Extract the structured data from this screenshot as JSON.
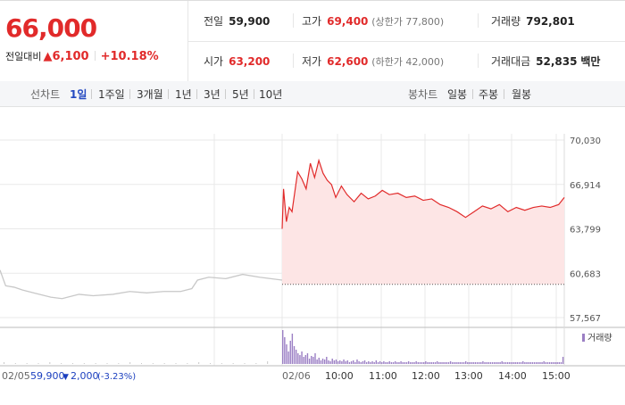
{
  "summary": {
    "current_price": "66,000",
    "change_label": "전일대비",
    "change_icon": "up-triangle-icon",
    "change_value": "6,100",
    "change_percent": "+10.18%",
    "prev_close_label": "전일",
    "prev_close": "59,900",
    "high_label": "고가",
    "high": "69,400",
    "high_limit": "(상한가 77,800)",
    "volume_label": "거래량",
    "volume": "792,801",
    "open_label": "시가",
    "open": "63,200",
    "low_label": "저가",
    "low": "62,600",
    "low_limit": "(하한가 42,000)",
    "trade_value_label": "거래대금",
    "trade_value": "52,835",
    "trade_value_unit": "백만"
  },
  "period_bar": {
    "line_chart_label": "선차트",
    "periods": [
      "1일",
      "1주일",
      "3개월",
      "1년",
      "3년",
      "5년",
      "10년"
    ],
    "active_period": "1일",
    "candle_label": "봉차트",
    "candle_periods": [
      "일봉",
      "주봉",
      "월봉"
    ]
  },
  "chart_data": {
    "type": "line",
    "y_ticks": [
      "70,030",
      "66,914",
      "63,799",
      "60,683",
      "57,567"
    ],
    "ylim": [
      57567,
      70030
    ],
    "prev_close": 59900,
    "x_tick_labels": [
      "02/05",
      "02/06",
      "10:00",
      "11:00",
      "12:00",
      "13:00",
      "14:00",
      "15:00"
    ],
    "prev_day_series": [
      {
        "t": 0.0,
        "v": 60900
      },
      {
        "t": 0.02,
        "v": 59800
      },
      {
        "t": 0.05,
        "v": 59700
      },
      {
        "t": 0.08,
        "v": 59500
      },
      {
        "t": 0.12,
        "v": 59300
      },
      {
        "t": 0.18,
        "v": 59000
      },
      {
        "t": 0.22,
        "v": 58900
      },
      {
        "t": 0.28,
        "v": 59200
      },
      {
        "t": 0.33,
        "v": 59100
      },
      {
        "t": 0.4,
        "v": 59200
      },
      {
        "t": 0.46,
        "v": 59400
      },
      {
        "t": 0.52,
        "v": 59300
      },
      {
        "t": 0.58,
        "v": 59400
      },
      {
        "t": 0.64,
        "v": 59400
      },
      {
        "t": 0.68,
        "v": 59600
      },
      {
        "t": 0.7,
        "v": 60200
      },
      {
        "t": 0.74,
        "v": 60400
      },
      {
        "t": 0.8,
        "v": 60300
      },
      {
        "t": 0.86,
        "v": 60600
      },
      {
        "t": 0.92,
        "v": 60400
      },
      {
        "t": 0.96,
        "v": 60300
      },
      {
        "t": 1.0,
        "v": 60200
      }
    ],
    "today_series": [
      {
        "t": 0.0,
        "v": 63800
      },
      {
        "t": 0.005,
        "v": 66600
      },
      {
        "t": 0.015,
        "v": 64300
      },
      {
        "t": 0.025,
        "v": 65300
      },
      {
        "t": 0.035,
        "v": 65000
      },
      {
        "t": 0.045,
        "v": 66400
      },
      {
        "t": 0.055,
        "v": 67800
      },
      {
        "t": 0.07,
        "v": 67300
      },
      {
        "t": 0.085,
        "v": 66600
      },
      {
        "t": 0.1,
        "v": 68400
      },
      {
        "t": 0.115,
        "v": 67400
      },
      {
        "t": 0.13,
        "v": 68600
      },
      {
        "t": 0.145,
        "v": 67700
      },
      {
        "t": 0.16,
        "v": 67200
      },
      {
        "t": 0.175,
        "v": 66900
      },
      {
        "t": 0.19,
        "v": 66000
      },
      {
        "t": 0.21,
        "v": 66800
      },
      {
        "t": 0.23,
        "v": 66200
      },
      {
        "t": 0.255,
        "v": 65700
      },
      {
        "t": 0.28,
        "v": 66300
      },
      {
        "t": 0.305,
        "v": 65900
      },
      {
        "t": 0.33,
        "v": 66100
      },
      {
        "t": 0.355,
        "v": 66500
      },
      {
        "t": 0.38,
        "v": 66200
      },
      {
        "t": 0.41,
        "v": 66300
      },
      {
        "t": 0.44,
        "v": 66000
      },
      {
        "t": 0.47,
        "v": 66100
      },
      {
        "t": 0.5,
        "v": 65800
      },
      {
        "t": 0.53,
        "v": 65900
      },
      {
        "t": 0.56,
        "v": 65500
      },
      {
        "t": 0.59,
        "v": 65300
      },
      {
        "t": 0.62,
        "v": 65000
      },
      {
        "t": 0.65,
        "v": 64600
      },
      {
        "t": 0.68,
        "v": 65000
      },
      {
        "t": 0.71,
        "v": 65400
      },
      {
        "t": 0.74,
        "v": 65200
      },
      {
        "t": 0.77,
        "v": 65500
      },
      {
        "t": 0.8,
        "v": 65000
      },
      {
        "t": 0.83,
        "v": 65300
      },
      {
        "t": 0.86,
        "v": 65100
      },
      {
        "t": 0.89,
        "v": 65300
      },
      {
        "t": 0.92,
        "v": 65400
      },
      {
        "t": 0.95,
        "v": 65300
      },
      {
        "t": 0.98,
        "v": 65500
      },
      {
        "t": 1.0,
        "v": 66000
      }
    ],
    "volume_legend": "거래량",
    "volume_bars_prev": [
      2,
      1,
      1,
      1,
      2,
      1,
      1,
      1,
      1,
      1,
      1,
      2,
      1,
      1,
      1,
      1,
      1,
      2,
      1,
      1,
      1,
      1,
      1,
      3
    ],
    "volume_bars_today": [
      38,
      30,
      22,
      14,
      26,
      34,
      20,
      16,
      12,
      10,
      14,
      8,
      10,
      12,
      6,
      9,
      8,
      12,
      5,
      7,
      4,
      6,
      5,
      8,
      4,
      3,
      6,
      4,
      5,
      3,
      4,
      3,
      5,
      3,
      4,
      2,
      3,
      4,
      2,
      5,
      3,
      2,
      3,
      4,
      2,
      3,
      2,
      3,
      2,
      4,
      2,
      3,
      2,
      3,
      2,
      2,
      3,
      2,
      2,
      3,
      2,
      2,
      3,
      2,
      2,
      2,
      3,
      2,
      2,
      2,
      3,
      2,
      2,
      2,
      2,
      3,
      2,
      2,
      2,
      2,
      2,
      3,
      2,
      2,
      2,
      2,
      2,
      2,
      3,
      2,
      2,
      2,
      2,
      2,
      2,
      2,
      3,
      2,
      2,
      2,
      2,
      2,
      2,
      2,
      2,
      3,
      2,
      2,
      2,
      2,
      2,
      2,
      2,
      2,
      2,
      3,
      2,
      2,
      2,
      2,
      2,
      2,
      2,
      2,
      2,
      2,
      3,
      2,
      2,
      2,
      2,
      2,
      2,
      2,
      2,
      2,
      2,
      3,
      2,
      2,
      2,
      2,
      2,
      2,
      2,
      2,
      2,
      8
    ],
    "footer_prev_close": "59,900",
    "footer_change_icon": "down-triangle-icon",
    "footer_change": "2,000",
    "footer_change_percent": "(-3.23%)",
    "colors": {
      "up": "#e12a2a",
      "down": "#1b3fbf",
      "prev_line": "#c8c8c8",
      "fill": "#fde5e5",
      "volume": "#9b7fc4",
      "grid": "#e9e9e9"
    }
  }
}
